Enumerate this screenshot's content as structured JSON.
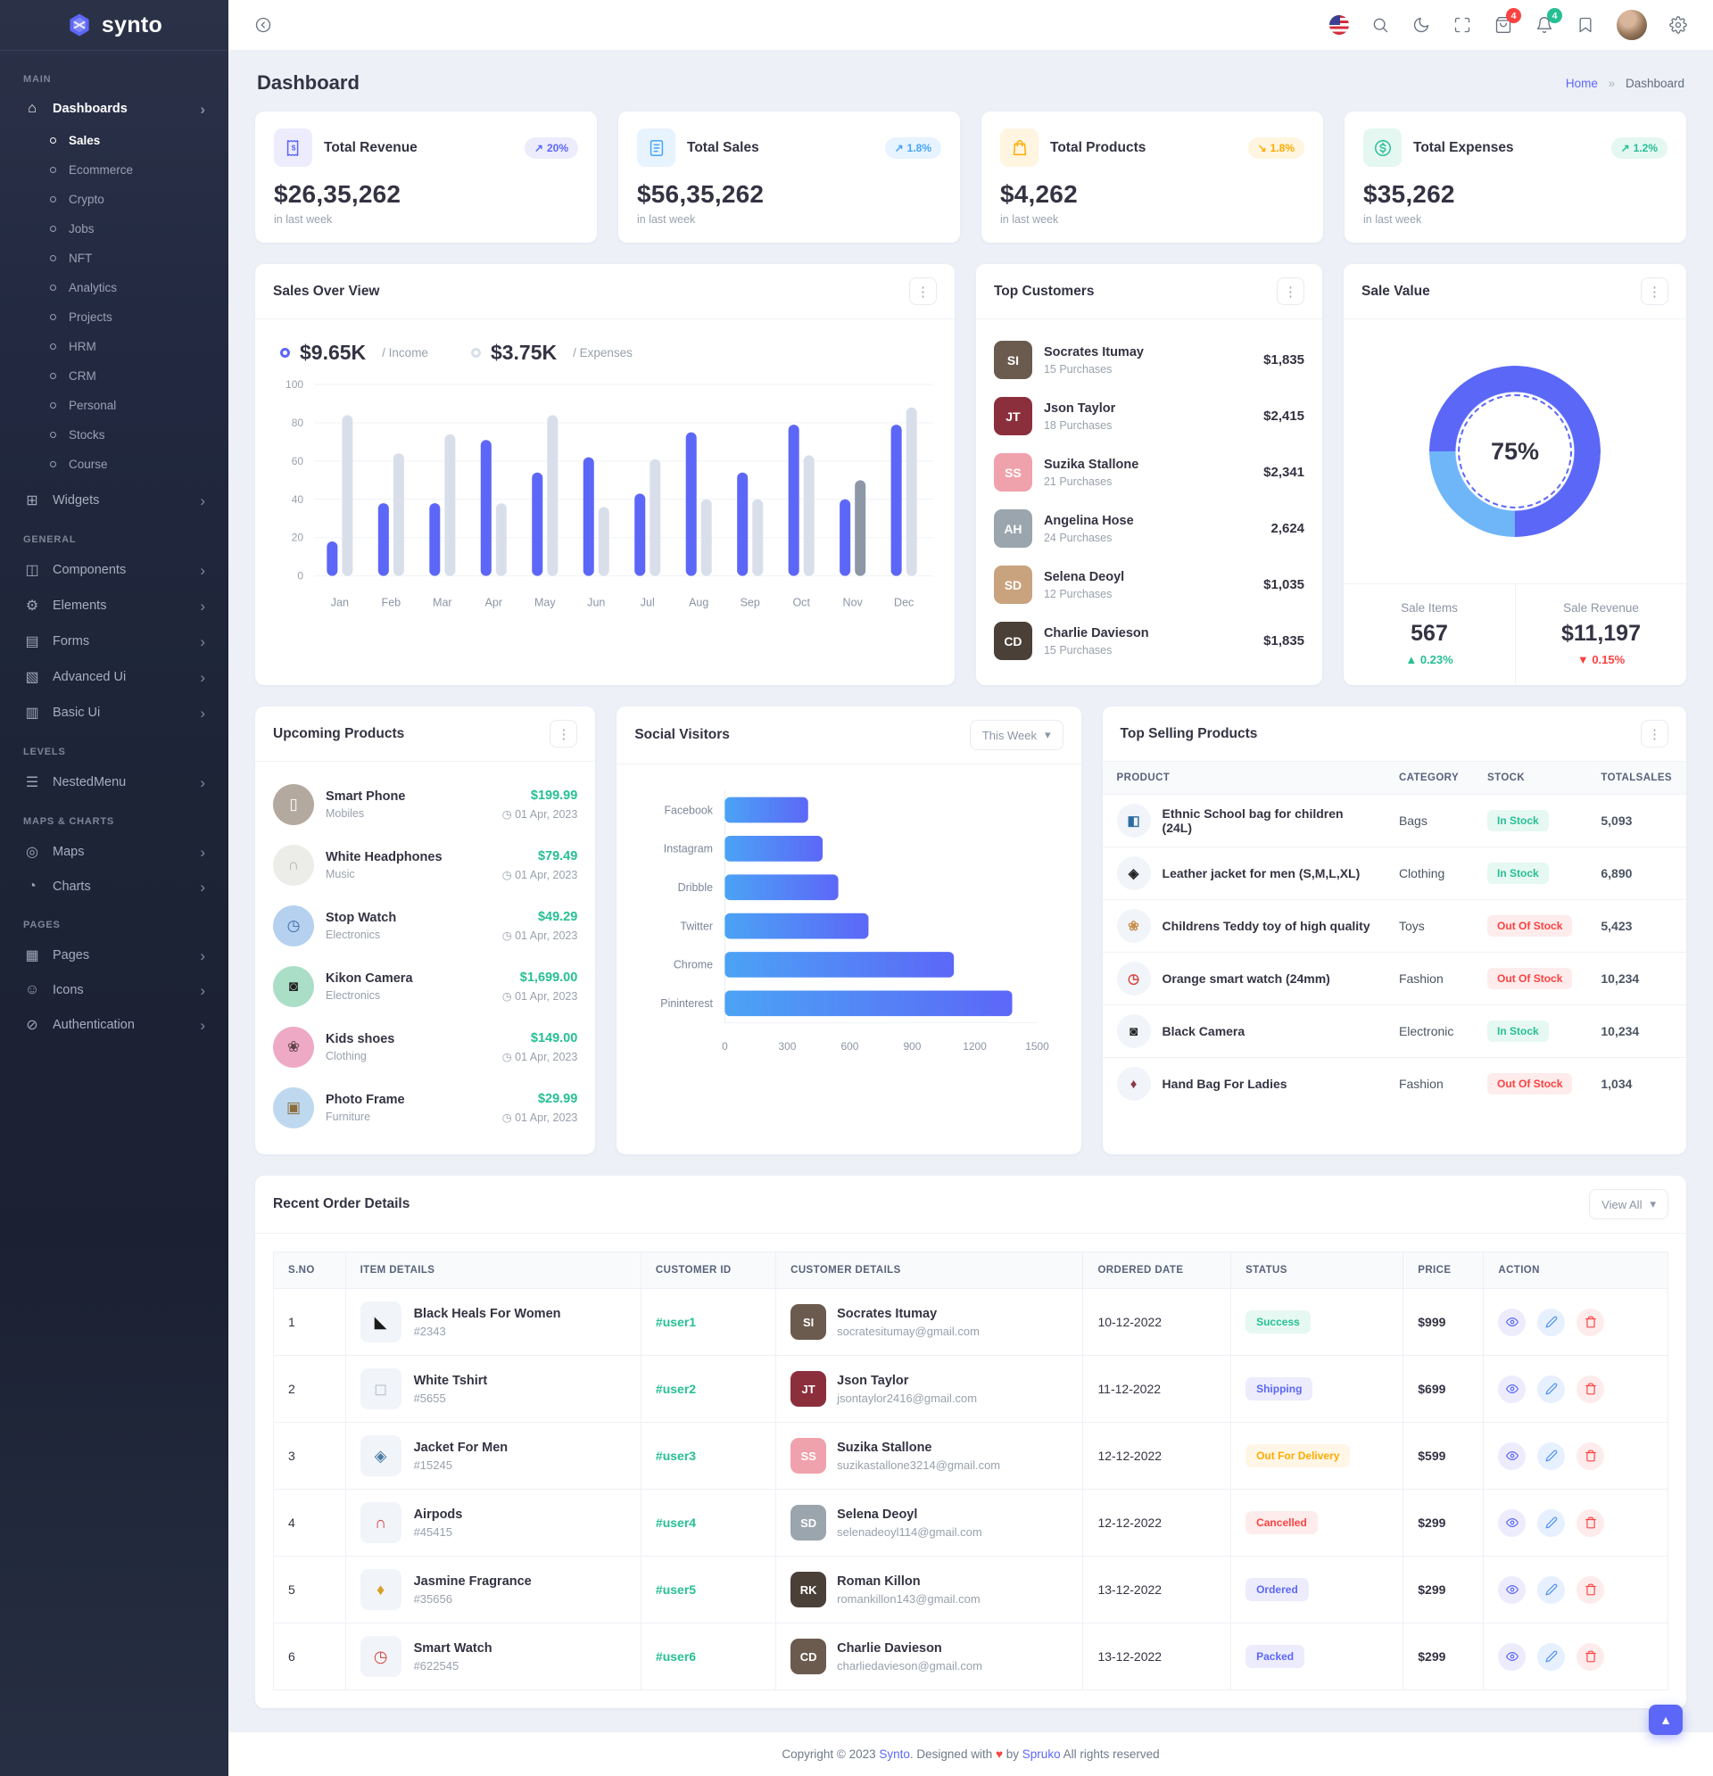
{
  "brand": {
    "name": "synto"
  },
  "sidebar": {
    "sections": [
      {
        "label": "MAIN",
        "items": [
          {
            "label": "Dashboards",
            "icon": "home-icon",
            "expanded": true,
            "active": true,
            "children": [
              "Sales",
              "Ecommerce",
              "Crypto",
              "Jobs",
              "NFT",
              "Analytics",
              "Projects",
              "HRM",
              "CRM",
              "Personal",
              "Stocks",
              "Course"
            ],
            "active_child": "Sales"
          },
          {
            "label": "Widgets",
            "icon": "widgets-icon"
          }
        ]
      },
      {
        "label": "GENERAL",
        "items": [
          {
            "label": "Components",
            "icon": "components-icon"
          },
          {
            "label": "Elements",
            "icon": "elements-icon"
          },
          {
            "label": "Forms",
            "icon": "forms-icon"
          },
          {
            "label": "Advanced Ui",
            "icon": "advanced-ui-icon"
          },
          {
            "label": "Basic Ui",
            "icon": "basic-ui-icon"
          }
        ]
      },
      {
        "label": "LEVELS",
        "items": [
          {
            "label": "NestedMenu",
            "icon": "nested-menu-icon"
          }
        ]
      },
      {
        "label": "MAPS & CHARTS",
        "items": [
          {
            "label": "Maps",
            "icon": "maps-icon"
          },
          {
            "label": "Charts",
            "icon": "charts-icon"
          }
        ]
      },
      {
        "label": "PAGES",
        "items": [
          {
            "label": "Pages",
            "icon": "pages-icon"
          },
          {
            "label": "Icons",
            "icon": "icons-icon"
          },
          {
            "label": "Authentication",
            "icon": "authentication-icon"
          }
        ]
      }
    ]
  },
  "header": {
    "cart_badge": "4",
    "notification_badge": "4"
  },
  "page": {
    "title": "Dashboard",
    "breadcrumb": {
      "home": "Home",
      "separator": "»",
      "current": "Dashboard"
    }
  },
  "stats": [
    {
      "title": "Total Revenue",
      "value": "$26,35,262",
      "caption": "in last week",
      "badge": "20%",
      "trend": "up",
      "accent": "#5c67f7",
      "tile_bg": "#ececfd",
      "icon": "invoice-icon"
    },
    {
      "title": "Total Sales",
      "value": "$56,35,262",
      "caption": "in last week",
      "badge": "1.8%",
      "trend": "up",
      "accent": "#45a4f8",
      "tile_bg": "#e7f3fe",
      "icon": "receipt-icon"
    },
    {
      "title": "Total Products",
      "value": "$4,262",
      "caption": "in last week",
      "badge": "1.8%",
      "trend": "down",
      "accent": "#ffab00",
      "tile_bg": "#fff5e0",
      "icon": "shopping-bag-icon"
    },
    {
      "title": "Total Expenses",
      "value": "$35,262",
      "caption": "in last week",
      "badge": "1.2%",
      "trend": "up",
      "accent": "#26bf94",
      "tile_bg": "#e4f7f1",
      "icon": "dollar-circle-icon"
    }
  ],
  "sales_overview": {
    "title": "Sales Over View",
    "legend": [
      {
        "value": "$9.65K",
        "label": "/ Income"
      },
      {
        "value": "$3.75K",
        "label": "/ Expenses"
      }
    ]
  },
  "top_customers": {
    "title": "Top Customers",
    "items": [
      {
        "name": "Socrates Itumay",
        "purchases": "15 Purchases",
        "amount": "$1,835",
        "initials": "SI",
        "avatar_bg": "#6b5b4f"
      },
      {
        "name": "Json Taylor",
        "purchases": "18 Purchases",
        "amount": "$2,415",
        "initials": "JT",
        "avatar_bg": "#8c2f3c"
      },
      {
        "name": "Suzika Stallone",
        "purchases": "21 Purchases",
        "amount": "$2,341",
        "initials": "SS",
        "avatar_bg": "#f0a2ac"
      },
      {
        "name": "Angelina Hose",
        "purchases": "24 Purchases",
        "amount": "2,624",
        "initials": "AH",
        "avatar_bg": "#9aa5ad"
      },
      {
        "name": "Selena Deoyl",
        "purchases": "12 Purchases",
        "amount": "$1,035",
        "initials": "SD",
        "avatar_bg": "#c9a27e"
      },
      {
        "name": "Charlie Davieson",
        "purchases": "15 Purchases",
        "amount": "$1,835",
        "initials": "CD",
        "avatar_bg": "#4a4038"
      }
    ]
  },
  "sale_value": {
    "title": "Sale Value",
    "center_label": "75%",
    "items_label": "Sale Items",
    "items_value": "567",
    "items_change": "0.23%",
    "revenue_label": "Sale Revenue",
    "revenue_value": "$11,197",
    "revenue_change": "0.15%"
  },
  "upcoming_products": {
    "title": "Upcoming Products",
    "items": [
      {
        "name": "Smart Phone",
        "category": "Mobiles",
        "price": "$199.99",
        "date": "01 Apr, 2023",
        "icon": "phone-icon",
        "glyph": "▯",
        "thumb_bg": "#b4a99f",
        "glyph_color": "#ffffff"
      },
      {
        "name": "White Headphones",
        "category": "Music",
        "price": "$79.49",
        "date": "01 Apr, 2023",
        "icon": "headphones-icon",
        "glyph": "∩",
        "thumb_bg": "#ecece9",
        "glyph_color": "#b0b0ac"
      },
      {
        "name": "Stop Watch",
        "category": "Electronics",
        "price": "$49.29",
        "date": "01 Apr, 2023",
        "icon": "alarm-clock-icon",
        "glyph": "◷",
        "thumb_bg": "#b5d1ef",
        "glyph_color": "#3c6cae"
      },
      {
        "name": "Kikon Camera",
        "category": "Electronics",
        "price": "$1,699.00",
        "date": "01 Apr, 2023",
        "icon": "camera-icon",
        "glyph": "◙",
        "thumb_bg": "#abdec6",
        "glyph_color": "#222222"
      },
      {
        "name": "Kids shoes",
        "category": "Clothing",
        "price": "$149.00",
        "date": "01 Apr, 2023",
        "icon": "shoes-icon",
        "glyph": "❀",
        "thumb_bg": "#eeaac5",
        "glyph_color": "#5d4248"
      },
      {
        "name": "Photo Frame",
        "category": "Furniture",
        "price": "$29.99",
        "date": "01 Apr, 2023",
        "icon": "photo-frame-icon",
        "glyph": "▣",
        "thumb_bg": "#bed9ef",
        "glyph_color": "#8a6d3b"
      }
    ]
  },
  "social_visitors": {
    "title": "Social Visitors",
    "filter_label": "This Week"
  },
  "top_selling": {
    "title": "Top Selling Products",
    "columns": [
      "PRODUCT",
      "CATEGORY",
      "STOCK",
      "TOTALSALES"
    ],
    "rows": [
      {
        "product": "Ethnic School bag for children (24L)",
        "category": "Bags",
        "stock": "In Stock",
        "in_stock": true,
        "sales": "5,093",
        "icon": "school-bag-icon",
        "glyph": "◧",
        "glyph_color": "#2e6da3"
      },
      {
        "product": "Leather jacket for men (S,M,L,XL)",
        "category": "Clothing",
        "stock": "In Stock",
        "in_stock": true,
        "sales": "6,890",
        "icon": "jacket-icon",
        "glyph": "◈",
        "glyph_color": "#222222"
      },
      {
        "product": "Childrens Teddy toy of high quality",
        "category": "Toys",
        "stock": "Out Of Stock",
        "in_stock": false,
        "sales": "5,423",
        "icon": "teddy-icon",
        "glyph": "❀",
        "glyph_color": "#c98f4e"
      },
      {
        "product": "Orange smart watch (24mm)",
        "category": "Fashion",
        "stock": "Out Of Stock",
        "in_stock": false,
        "sales": "10,234",
        "icon": "smart-watch-icon",
        "glyph": "◷",
        "glyph_color": "#d8413c"
      },
      {
        "product": "Black Camera",
        "category": "Electronic",
        "stock": "In Stock",
        "in_stock": true,
        "sales": "10,234",
        "icon": "camera-icon",
        "glyph": "◙",
        "glyph_color": "#222222"
      },
      {
        "product": "Hand Bag For Ladies",
        "category": "Fashion",
        "stock": "Out Of Stock",
        "in_stock": false,
        "sales": "1,034",
        "icon": "hand-bag-icon",
        "glyph": "♦",
        "glyph_color": "#8c3a4a"
      }
    ]
  },
  "recent_orders": {
    "title": "Recent Order Details",
    "view_all_label": "View All",
    "columns": [
      "S.NO",
      "ITEM DETAILS",
      "CUSTOMER ID",
      "CUSTOMER DETAILS",
      "ORDERED DATE",
      "STATUS",
      "PRICE",
      "ACTION"
    ],
    "rows": [
      {
        "sno": "1",
        "item": "Black Heals For Women",
        "item_id": "#2343",
        "customer_id": "#user1",
        "customer": "Socrates Itumay",
        "email": "socratesitumay@gmail.com",
        "date": "10-12-2022",
        "status": "Success",
        "price": "$999",
        "initials": "SI",
        "avatar_bg": "#6b5b4f",
        "icon": "heels-icon",
        "glyph": "◣",
        "glyph_color": "#1a1a1a"
      },
      {
        "sno": "2",
        "item": "White Tshirt",
        "item_id": "#5655",
        "customer_id": "#user2",
        "customer": "Json Taylor",
        "email": "jsontaylor2416@gmail.com",
        "date": "11-12-2022",
        "status": "Shipping",
        "price": "$699",
        "initials": "JT",
        "avatar_bg": "#8c2f3c",
        "icon": "tshirt-icon",
        "glyph": "◻",
        "glyph_color": "#b7bcc6"
      },
      {
        "sno": "3",
        "item": "Jacket For Men",
        "item_id": "#15245",
        "customer_id": "#user3",
        "customer": "Suzika Stallone",
        "email": "suzikastallone3214@gmail.com",
        "date": "12-12-2022",
        "status": "Out For Delivery",
        "price": "$599",
        "initials": "SS",
        "avatar_bg": "#f0a2ac",
        "icon": "jacket-icon",
        "glyph": "◈",
        "glyph_color": "#4a7ca5"
      },
      {
        "sno": "4",
        "item": "Airpods",
        "item_id": "#45415",
        "customer_id": "#user4",
        "customer": "Selena Deoyl",
        "email": "selenadeoyl114@gmail.com",
        "date": "12-12-2022",
        "status": "Cancelled",
        "price": "$299",
        "initials": "SD",
        "avatar_bg": "#9aa5ad",
        "icon": "airpods-icon",
        "glyph": "∩",
        "glyph_color": "#d8413c"
      },
      {
        "sno": "5",
        "item": "Jasmine Fragrance",
        "item_id": "#35656",
        "customer_id": "#user5",
        "customer": "Roman Killon",
        "email": "romankillon143@gmail.com",
        "date": "13-12-2022",
        "status": "Ordered",
        "price": "$299",
        "initials": "RK",
        "avatar_bg": "#4a4038",
        "icon": "perfume-icon",
        "glyph": "♦",
        "glyph_color": "#d9a023"
      },
      {
        "sno": "6",
        "item": "Smart Watch",
        "item_id": "#622545",
        "customer_id": "#user6",
        "customer": "Charlie Davieson",
        "email": "charliedavieson@gmail.com",
        "date": "13-12-2022",
        "status": "Packed",
        "price": "$299",
        "initials": "CD",
        "avatar_bg": "#6b5b4f",
        "icon": "smart-watch-icon",
        "glyph": "◷",
        "glyph_color": "#d8413c"
      }
    ],
    "status_styles": {
      "Success": {
        "fg": "#26bf94",
        "bg": "#e6f8f2"
      },
      "Shipping": {
        "fg": "#5c67f7",
        "bg": "#ececfd"
      },
      "Out For Delivery": {
        "fg": "#ffab00",
        "bg": "#fff6e6"
      },
      "Cancelled": {
        "fg": "#fb4242",
        "bg": "#feecec"
      },
      "Ordered": {
        "fg": "#5c67f7",
        "bg": "#ececfd"
      },
      "Packed": {
        "fg": "#5c67f7",
        "bg": "#ececfd"
      }
    }
  },
  "footer": {
    "prefix": "Copyright © 2023",
    "brand": "Synto",
    "middle": ". Designed with",
    "heart": "♥",
    "by": "by",
    "designer": "Spruko",
    "suffix": "All rights reserved"
  },
  "chart_data": [
    {
      "id": "sales_overview",
      "type": "bar",
      "title": "Sales Over View",
      "categories": [
        "Jan",
        "Feb",
        "Mar",
        "Apr",
        "May",
        "Jun",
        "Jul",
        "Aug",
        "Sep",
        "Oct",
        "Nov",
        "Dec"
      ],
      "series": [
        {
          "name": "Income",
          "color": "#5c67f7",
          "values": [
            18,
            38,
            38,
            71,
            54,
            62,
            43,
            75,
            54,
            79,
            40,
            79
          ]
        },
        {
          "name": "Expenses",
          "color": "#d9dfea",
          "highlight_index": 10,
          "highlight_color": "#8d97a8",
          "values": [
            84,
            64,
            74,
            38,
            84,
            36,
            61,
            40,
            40,
            63,
            50,
            88
          ]
        }
      ],
      "xlabel": "",
      "ylabel": "",
      "ylim": [
        0,
        100
      ],
      "yticks": [
        0,
        20,
        40,
        60,
        80,
        100
      ],
      "grid": true,
      "legend_position": "top"
    },
    {
      "id": "social_visitors",
      "type": "bar",
      "orientation": "horizontal",
      "title": "Social Visitors",
      "categories": [
        "Facebook",
        "Instagram",
        "Dribble",
        "Twitter",
        "Chrome",
        "Pininterest"
      ],
      "values": [
        400,
        470,
        545,
        690,
        1100,
        1380
      ],
      "xlim": [
        0,
        1500
      ],
      "xticks": [
        0,
        300,
        600,
        900,
        1200,
        1500
      ],
      "bar_gradient": [
        "#4ba3f5",
        "#5c67f7"
      ],
      "grid": false
    },
    {
      "id": "sale_value",
      "type": "pie",
      "title": "Sale Value",
      "segments": [
        {
          "name": "primary",
          "value": 75,
          "color": "#5b67f7"
        },
        {
          "name": "secondary",
          "value": 25,
          "color": "#6eb6f8"
        }
      ],
      "center_label": "75%"
    }
  ]
}
